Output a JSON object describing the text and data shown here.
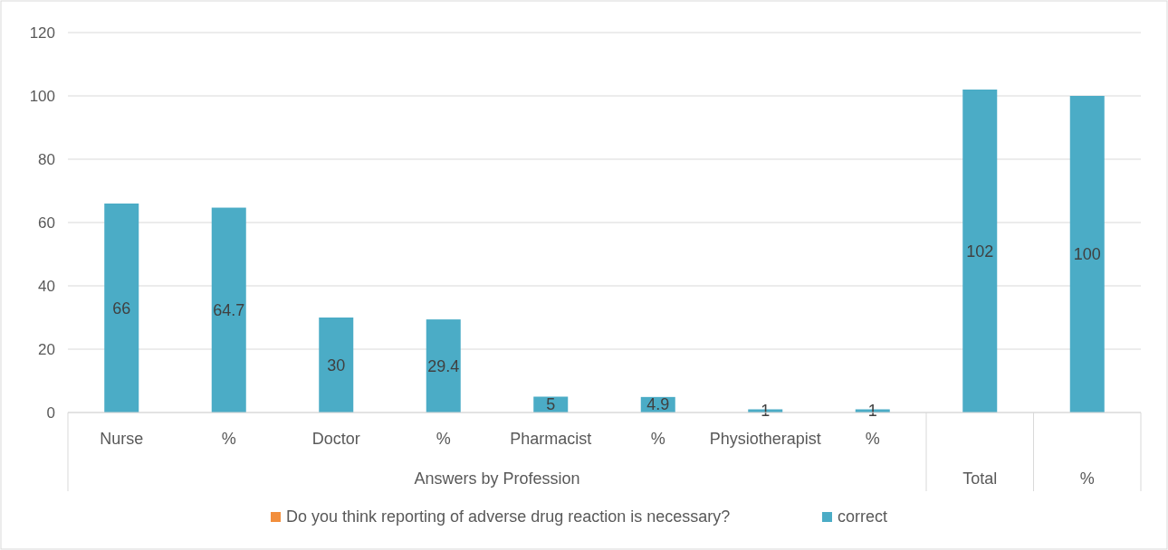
{
  "chart_data": {
    "type": "bar",
    "categories": [
      "Nurse",
      "%",
      "Doctor",
      "%",
      "Pharmacist",
      "%",
      "Physiotherapist",
      "%",
      null,
      null
    ],
    "series": [
      {
        "name": "Do you think reporting of adverse drug reaction is necessary?",
        "color": "#f28e3c",
        "values": [
          null,
          null,
          null,
          null,
          null,
          null,
          null,
          null,
          null,
          null
        ]
      },
      {
        "name": "correct",
        "color": "#4bacc6",
        "values": [
          66,
          64.7,
          30,
          29.4,
          5,
          4.9,
          1,
          1,
          102,
          100
        ]
      }
    ],
    "annotations": [
      "Answers by Profession",
      "Total",
      "%"
    ],
    "ylim": [
      0,
      120
    ],
    "yticks": [
      0,
      20,
      40,
      60,
      80,
      100,
      120
    ],
    "grid": "y",
    "legend": "bottom",
    "data_labels": true
  }
}
